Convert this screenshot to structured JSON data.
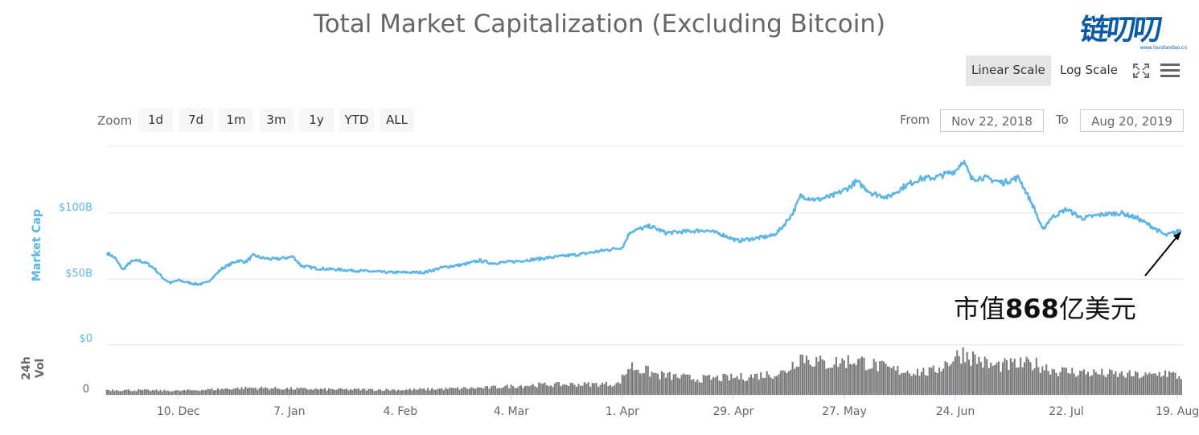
{
  "title": "Total Market Capitalization (Excluding Bitcoin)",
  "logo": {
    "text": "链叨叨",
    "sub": "www.liandaodao.cn"
  },
  "scale_buttons": {
    "linear": "Linear Scale",
    "log": "Log Scale",
    "active": "linear"
  },
  "zoom": {
    "label": "Zoom",
    "buttons": [
      "1d",
      "7d",
      "1m",
      "3m",
      "1y",
      "YTD",
      "ALL"
    ]
  },
  "range": {
    "from_label": "From",
    "from_value": "Nov 22, 2018",
    "to_label": "To",
    "to_value": "Aug 20, 2019"
  },
  "annotation": {
    "prefix": "市值",
    "value": "868",
    "suffix": "亿美元"
  },
  "colors": {
    "line": "#5bb5e5",
    "volume": "#7a7a7a",
    "axis_text": "#5bb5e5",
    "grid": "#e6e6e6"
  },
  "chart_data": {
    "type": "line",
    "ylabel": "Market Cap",
    "y_ticks": [
      "$50B",
      "$100B"
    ],
    "ylim_billions": [
      0,
      150
    ],
    "grid": true,
    "x_ticks": [
      "10. Dec",
      "7. Jan",
      "4. Feb",
      "4. Mar",
      "1. Apr",
      "29. Apr",
      "27. May",
      "24. Jun",
      "22. Jul",
      "19. Aug"
    ],
    "x_tick_dates": [
      "2018-12-10",
      "2019-01-07",
      "2019-02-04",
      "2019-03-04",
      "2019-04-01",
      "2019-04-29",
      "2019-05-27",
      "2019-06-24",
      "2019-07-22",
      "2019-08-19"
    ],
    "x_range": [
      "2018-11-22",
      "2019-08-20"
    ],
    "series": [
      {
        "values_billions_by_date": [
          [
            "2018-11-22",
            70
          ],
          [
            "2018-11-24",
            66
          ],
          [
            "2018-11-26",
            57
          ],
          [
            "2018-11-28",
            63
          ],
          [
            "2018-11-30",
            64
          ],
          [
            "2018-12-02",
            62
          ],
          [
            "2018-12-04",
            58
          ],
          [
            "2018-12-06",
            51
          ],
          [
            "2018-12-08",
            47
          ],
          [
            "2018-12-10",
            49
          ],
          [
            "2018-12-13",
            47
          ],
          [
            "2018-12-15",
            46
          ],
          [
            "2018-12-17",
            47
          ],
          [
            "2018-12-19",
            52
          ],
          [
            "2018-12-21",
            58
          ],
          [
            "2018-12-23",
            61
          ],
          [
            "2018-12-25",
            64
          ],
          [
            "2018-12-27",
            63
          ],
          [
            "2018-12-29",
            68
          ],
          [
            "2018-12-31",
            66
          ],
          [
            "2019-01-03",
            65
          ],
          [
            "2019-01-06",
            66
          ],
          [
            "2019-01-08",
            67
          ],
          [
            "2019-01-10",
            60
          ],
          [
            "2019-01-14",
            58
          ],
          [
            "2019-01-20",
            57
          ],
          [
            "2019-01-26",
            56
          ],
          [
            "2019-02-01",
            55
          ],
          [
            "2019-02-06",
            55
          ],
          [
            "2019-02-10",
            55
          ],
          [
            "2019-02-15",
            59
          ],
          [
            "2019-02-20",
            61
          ],
          [
            "2019-02-24",
            64
          ],
          [
            "2019-02-27",
            62
          ],
          [
            "2019-03-04",
            63
          ],
          [
            "2019-03-10",
            65
          ],
          [
            "2019-03-16",
            67
          ],
          [
            "2019-03-22",
            69
          ],
          [
            "2019-03-28",
            72
          ],
          [
            "2019-04-01",
            74
          ],
          [
            "2019-04-03",
            86
          ],
          [
            "2019-04-08",
            90
          ],
          [
            "2019-04-12",
            85
          ],
          [
            "2019-04-17",
            86
          ],
          [
            "2019-04-22",
            87
          ],
          [
            "2019-04-26",
            84
          ],
          [
            "2019-04-30",
            79
          ],
          [
            "2019-05-05",
            81
          ],
          [
            "2019-05-09",
            83
          ],
          [
            "2019-05-11",
            88
          ],
          [
            "2019-05-14",
            100
          ],
          [
            "2019-05-16",
            113
          ],
          [
            "2019-05-20",
            110
          ],
          [
            "2019-05-24",
            113
          ],
          [
            "2019-05-28",
            119
          ],
          [
            "2019-05-30",
            124
          ],
          [
            "2019-06-03",
            115
          ],
          [
            "2019-06-07",
            112
          ],
          [
            "2019-06-11",
            120
          ],
          [
            "2019-06-15",
            126
          ],
          [
            "2019-06-19",
            127
          ],
          [
            "2019-06-24",
            132
          ],
          [
            "2019-06-26",
            140
          ],
          [
            "2019-06-28",
            126
          ],
          [
            "2019-07-01",
            127
          ],
          [
            "2019-07-06",
            123
          ],
          [
            "2019-07-10",
            127
          ],
          [
            "2019-07-14",
            103
          ],
          [
            "2019-07-16",
            87
          ],
          [
            "2019-07-18",
            96
          ],
          [
            "2019-07-22",
            103
          ],
          [
            "2019-07-26",
            96
          ],
          [
            "2019-07-31",
            99
          ],
          [
            "2019-08-05",
            100
          ],
          [
            "2019-08-09",
            96
          ],
          [
            "2019-08-13",
            89
          ],
          [
            "2019-08-16",
            83
          ],
          [
            "2019-08-18",
            85
          ],
          [
            "2019-08-20",
            87
          ]
        ]
      }
    ],
    "volume": {
      "ylabel": "24h Vol",
      "y_ticks": [
        "$0",
        "0"
      ],
      "relative_by_date": [
        [
          "2018-11-22",
          0.1
        ],
        [
          "2018-12-10",
          0.08
        ],
        [
          "2018-12-28",
          0.14
        ],
        [
          "2019-01-15",
          0.11
        ],
        [
          "2019-02-05",
          0.1
        ],
        [
          "2019-02-25",
          0.14
        ],
        [
          "2019-03-10",
          0.2
        ],
        [
          "2019-03-31",
          0.22
        ],
        [
          "2019-04-03",
          0.58
        ],
        [
          "2019-04-10",
          0.4
        ],
        [
          "2019-04-20",
          0.32
        ],
        [
          "2019-05-01",
          0.35
        ],
        [
          "2019-05-12",
          0.45
        ],
        [
          "2019-05-16",
          0.78
        ],
        [
          "2019-05-22",
          0.62
        ],
        [
          "2019-05-30",
          0.7
        ],
        [
          "2019-06-08",
          0.5
        ],
        [
          "2019-06-18",
          0.45
        ],
        [
          "2019-06-26",
          0.85
        ],
        [
          "2019-07-03",
          0.58
        ],
        [
          "2019-07-14",
          0.62
        ],
        [
          "2019-07-20",
          0.48
        ],
        [
          "2019-08-01",
          0.42
        ],
        [
          "2019-08-12",
          0.38
        ],
        [
          "2019-08-16",
          0.45
        ],
        [
          "2019-08-20",
          0.35
        ]
      ]
    }
  }
}
